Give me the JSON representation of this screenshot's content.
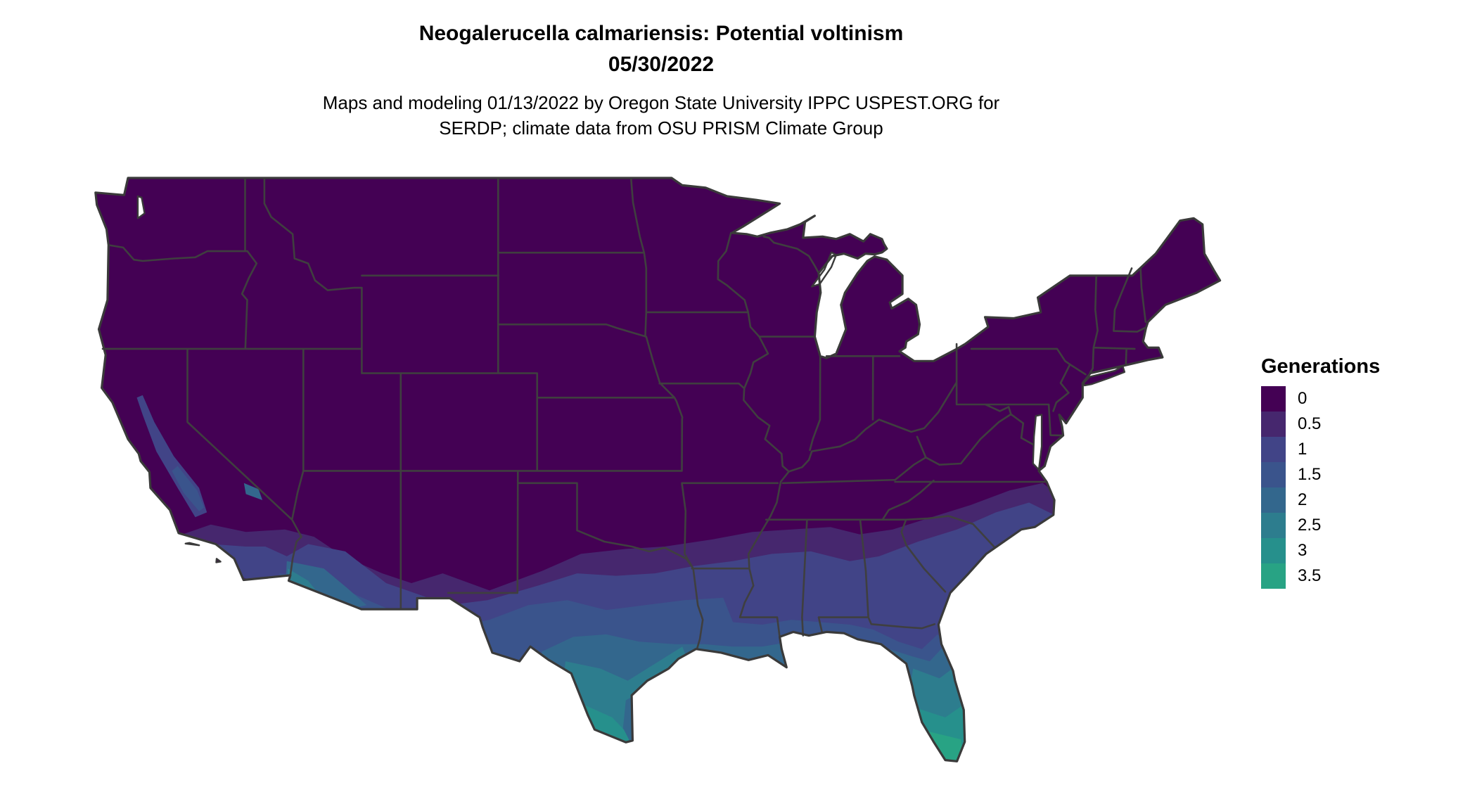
{
  "title": {
    "line1": "Neogalerucella calmariensis: Potential voltinism",
    "line2": "05/30/2022"
  },
  "subtitle": {
    "line1": "Maps and modeling 01/13/2022 by Oregon State University IPPC USPEST.ORG for",
    "line2": "SERDP; climate data from OSU PRISM Climate Group"
  },
  "legend": {
    "title": "Generations",
    "entries": [
      {
        "label": "0",
        "color": "#440154"
      },
      {
        "label": "0.5",
        "color": "#46276e"
      },
      {
        "label": "1",
        "color": "#414487"
      },
      {
        "label": "1.5",
        "color": "#3a548c"
      },
      {
        "label": "2",
        "color": "#33678d"
      },
      {
        "label": "2.5",
        "color": "#2d7d8e"
      },
      {
        "label": "3",
        "color": "#26908c"
      },
      {
        "label": "3.5",
        "color": "#28a384"
      }
    ]
  },
  "map": {
    "region": "Contiguous United States",
    "variable": "Generations",
    "background": "#ffffff",
    "state_border_color": "#3f3f3f",
    "outline_color": "#3a3a3a",
    "base_value_label": "0"
  }
}
